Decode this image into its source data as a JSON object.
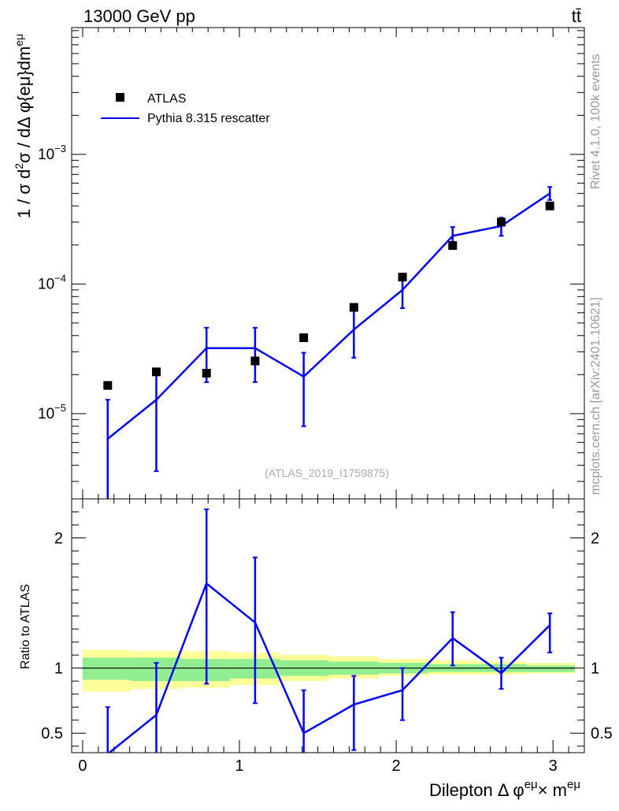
{
  "header": {
    "energy": "13000 GeV pp",
    "process": "tt̄"
  },
  "side_text": {
    "rivet": "Rivet 4.1.0,  100k events",
    "site": "mcplots.cern.ch [arXiv:2401.10621]"
  },
  "ref_note": "(ATLAS_2019_I1759875)",
  "legend": {
    "data_label": "ATLAS",
    "mc_label": "Pythia 8.315 rescatter"
  },
  "colors": {
    "mc": "#0000ff",
    "data": "#000000",
    "band_inner": "#90ee90",
    "band_outer": "#ffff99"
  },
  "chart_data": [
    {
      "type": "scatter",
      "panel": "main",
      "ylabel": "1 / σ  d²σ / dΔ φ{eμ}dm^eμ",
      "ylabel_parts": {
        "pre": "1 / σ  d",
        "sup1": "2",
        "mid": "σ / dΔ φ{eμ}dm",
        "sup2": "eμ"
      },
      "yscale": "log",
      "xlim": [
        -0.07,
        3.2
      ],
      "ylim": [
        2.2e-06,
        0.0095
      ],
      "y_ticks": [
        {
          "value": 0.001,
          "base": "10",
          "exp": "−3"
        },
        {
          "value": 0.0001,
          "base": "10",
          "exp": "−4"
        },
        {
          "value": 1e-05,
          "base": "10",
          "exp": "−5"
        }
      ],
      "series": [
        {
          "name": "ATLAS",
          "kind": "points",
          "x": [
            0.16,
            0.47,
            0.79,
            1.1,
            1.41,
            1.73,
            2.04,
            2.36,
            2.67,
            2.98
          ],
          "y": [
            1.65e-05,
            2.1e-05,
            2.05e-05,
            2.55e-05,
            3.85e-05,
            6.6e-05,
            0.000113,
            0.000198,
            0.0003,
            0.0004
          ]
        },
        {
          "name": "Pythia 8.315 rescatter",
          "kind": "line",
          "x": [
            0.16,
            0.47,
            0.79,
            1.1,
            1.41,
            1.73,
            2.04,
            2.36,
            2.67,
            2.98
          ],
          "y": [
            6.4e-06,
            1.28e-05,
            3.2e-05,
            3.2e-05,
            1.93e-05,
            4.45e-05,
            9e-05,
            0.000235,
            0.00028,
            0.0005
          ],
          "err_low": [
            1e-06,
            3.6e-06,
            1.75e-05,
            1.75e-05,
            8e-06,
            2.7e-05,
            6.5e-05,
            0.000198,
            0.000235,
            0.000445
          ],
          "err_high": [
            1.28e-05,
            2.05e-05,
            4.6e-05,
            4.6e-05,
            2.95e-05,
            6.3e-05,
            0.00011,
            0.000275,
            0.000325,
            0.00056
          ]
        }
      ]
    },
    {
      "type": "line",
      "panel": "ratio",
      "ylabel": "Ratio to ATLAS",
      "xlabel_parts": {
        "pre": "Dilepton Δ φ",
        "sup1": "eμ",
        "mid": "× m",
        "sup2": "eμ"
      },
      "xlim": [
        -0.07,
        3.2
      ],
      "ylim": [
        0.35,
        2.3
      ],
      "x_ticks": [
        0,
        1,
        2,
        3
      ],
      "x_tick_labels": [
        "0",
        "1",
        "2",
        "3"
      ],
      "y_ticks": [
        0.5,
        1,
        2
      ],
      "y_tick_labels": [
        "0.5",
        "1",
        "2"
      ],
      "reference_line": 1,
      "bin_edges": [
        0.0,
        0.31,
        0.63,
        0.94,
        1.26,
        1.57,
        1.89,
        2.2,
        2.51,
        2.83,
        3.14
      ],
      "band_inner": [
        [
          0.91,
          1.08
        ],
        [
          0.9,
          1.08
        ],
        [
          0.9,
          1.07
        ],
        [
          0.92,
          1.07
        ],
        [
          0.94,
          1.06
        ],
        [
          0.95,
          1.05
        ],
        [
          0.96,
          1.04
        ],
        [
          0.97,
          1.03
        ],
        [
          0.97,
          1.03
        ],
        [
          0.97,
          1.02
        ]
      ],
      "band_outer": [
        [
          0.82,
          1.14
        ],
        [
          0.84,
          1.13
        ],
        [
          0.85,
          1.13
        ],
        [
          0.87,
          1.12
        ],
        [
          0.9,
          1.1
        ],
        [
          0.92,
          1.09
        ],
        [
          0.94,
          1.07
        ],
        [
          0.95,
          1.06
        ],
        [
          0.95,
          1.05
        ],
        [
          0.96,
          1.04
        ]
      ],
      "series": [
        {
          "name": "Pythia 8.315 rescatter",
          "x": [
            0.16,
            0.47,
            0.79,
            1.1,
            1.41,
            1.73,
            2.04,
            2.36,
            2.67,
            2.98
          ],
          "y": [
            0.34,
            0.64,
            1.65,
            1.35,
            0.5,
            0.72,
            0.83,
            1.23,
            0.96,
            1.33
          ],
          "err_low": [
            0.1,
            0.3,
            0.88,
            0.73,
            0.3,
            0.37,
            0.6,
            1.02,
            0.84,
            1.12
          ],
          "err_high": [
            0.7,
            1.04,
            2.22,
            1.85,
            0.83,
            0.94,
            1.0,
            1.43,
            1.08,
            1.42
          ]
        }
      ]
    }
  ]
}
